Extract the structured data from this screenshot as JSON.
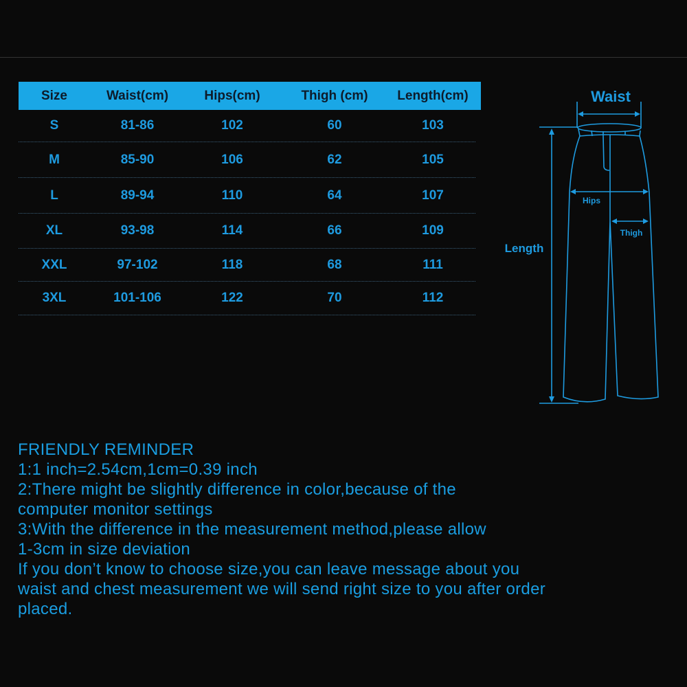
{
  "colors": {
    "background": "#0a0a0a",
    "header_bg": "#1aa7e6",
    "accent": "#1e9be0",
    "header_text": "#0d1b2a"
  },
  "table": {
    "headers": [
      "Size",
      "Waist(cm)",
      "Hips(cm)",
      "Thigh (cm)",
      "Length(cm)"
    ],
    "rows": [
      [
        "S",
        "81-86",
        "102",
        "60",
        "103"
      ],
      [
        "M",
        "85-90",
        "106",
        "62",
        "105"
      ],
      [
        "L",
        "89-94",
        "110",
        "64",
        "107"
      ],
      [
        "XL",
        "93-98",
        "114",
        "66",
        "109"
      ],
      [
        "XXL",
        "97-102",
        "118",
        "68",
        "111"
      ],
      [
        "3XL",
        "101-106",
        "122",
        "70",
        "112"
      ]
    ]
  },
  "diagram": {
    "waist": "Waist",
    "hips": "Hips",
    "thigh": "Thigh",
    "length": "Length"
  },
  "reminder": {
    "title": "FRIENDLY REMINDER",
    "lines": [
      "1:1 inch=2.54cm,1cm=0.39 inch",
      "2:There might be slightly difference in color,because of the",
      "computer monitor settings",
      "3:With the difference in the measurement method,please allow",
      "1-3cm in size deviation",
      "If you don’t know to choose size,you can leave message about you",
      "waist and chest measurement we will send right size to you after order",
      "placed."
    ]
  }
}
